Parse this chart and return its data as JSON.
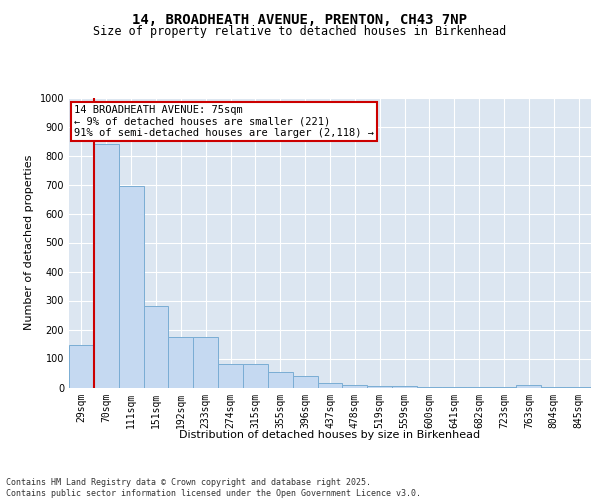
{
  "title_line1": "14, BROADHEATH AVENUE, PRENTON, CH43 7NP",
  "title_line2": "Size of property relative to detached houses in Birkenhead",
  "xlabel": "Distribution of detached houses by size in Birkenhead",
  "ylabel": "Number of detached properties",
  "categories": [
    "29sqm",
    "70sqm",
    "111sqm",
    "151sqm",
    "192sqm",
    "233sqm",
    "274sqm",
    "315sqm",
    "355sqm",
    "396sqm",
    "437sqm",
    "478sqm",
    "519sqm",
    "559sqm",
    "600sqm",
    "641sqm",
    "682sqm",
    "723sqm",
    "763sqm",
    "804sqm",
    "845sqm"
  ],
  "values": [
    148,
    840,
    695,
    280,
    175,
    175,
    80,
    80,
    55,
    40,
    15,
    10,
    5,
    5,
    2,
    2,
    2,
    2,
    10,
    2,
    2
  ],
  "bar_color": "#c5d9f1",
  "bar_edge_color": "#7aadd4",
  "vline_x": 0.5,
  "vline_color": "#cc0000",
  "annotation_box_text": "14 BROADHEATH AVENUE: 75sqm\n← 9% of detached houses are smaller (221)\n91% of semi-detached houses are larger (2,118) →",
  "annotation_box_color": "#cc0000",
  "background_color": "#ffffff",
  "plot_bg_color": "#dce6f1",
  "ylim": [
    0,
    1000
  ],
  "yticks": [
    0,
    100,
    200,
    300,
    400,
    500,
    600,
    700,
    800,
    900,
    1000
  ],
  "footer_text": "Contains HM Land Registry data © Crown copyright and database right 2025.\nContains public sector information licensed under the Open Government Licence v3.0.",
  "title_fontsize": 10,
  "subtitle_fontsize": 8.5,
  "axis_label_fontsize": 8,
  "tick_fontsize": 7
}
